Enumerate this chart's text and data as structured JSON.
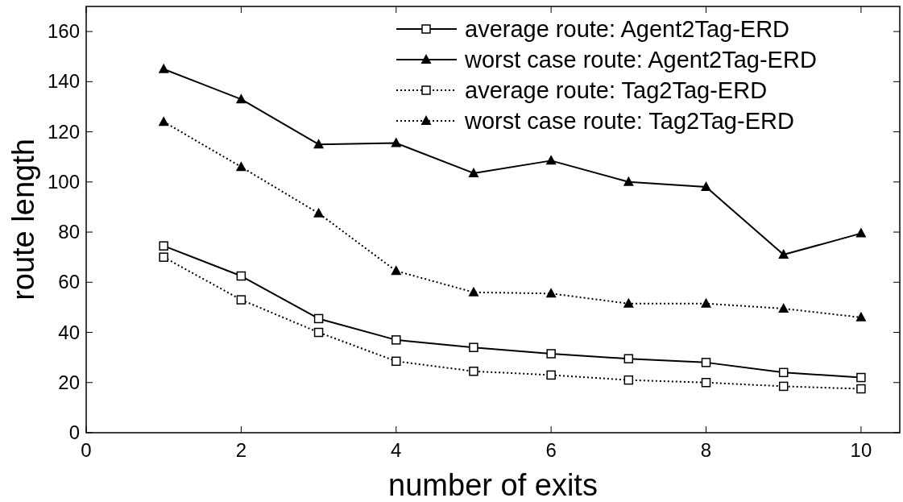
{
  "chart_data": {
    "type": "line",
    "xlabel": "number of exits",
    "ylabel": "route length",
    "x": [
      1,
      2,
      3,
      4,
      5,
      6,
      7,
      8,
      9,
      10
    ],
    "xlim": [
      0,
      10.5
    ],
    "xticks": [
      0,
      2,
      4,
      6,
      8,
      10
    ],
    "ylim": [
      0,
      170
    ],
    "yticks": [
      0,
      20,
      40,
      60,
      80,
      100,
      120,
      140,
      160
    ],
    "grid": false,
    "legend": "top right",
    "series": [
      {
        "name": "average route: Agent2Tag-ERD",
        "color": "#000000",
        "marker": "square",
        "line_style": "solid",
        "values": [
          74.5,
          62.5,
          45.5,
          37,
          34,
          31.5,
          29.5,
          28,
          24,
          22
        ]
      },
      {
        "name": "worst case route: Agent2Tag-ERD",
        "color": "#000000",
        "marker": "triangle",
        "line_style": "solid",
        "values": [
          145,
          133,
          115,
          115.5,
          103.5,
          108.5,
          100,
          98,
          71,
          79.5
        ]
      },
      {
        "name": "average route: Tag2Tag-ERD",
        "color": "#000000",
        "marker": "square",
        "line_style": "dotted",
        "values": [
          70,
          53,
          40,
          28.5,
          24.5,
          23,
          21,
          20,
          18.5,
          17.5
        ]
      },
      {
        "name": "worst case route: Tag2Tag-ERD",
        "color": "#000000",
        "marker": "triangle",
        "line_style": "dotted",
        "values": [
          124,
          106,
          87.5,
          64.5,
          56,
          55.5,
          51.5,
          51.5,
          49.5,
          46
        ]
      }
    ]
  }
}
